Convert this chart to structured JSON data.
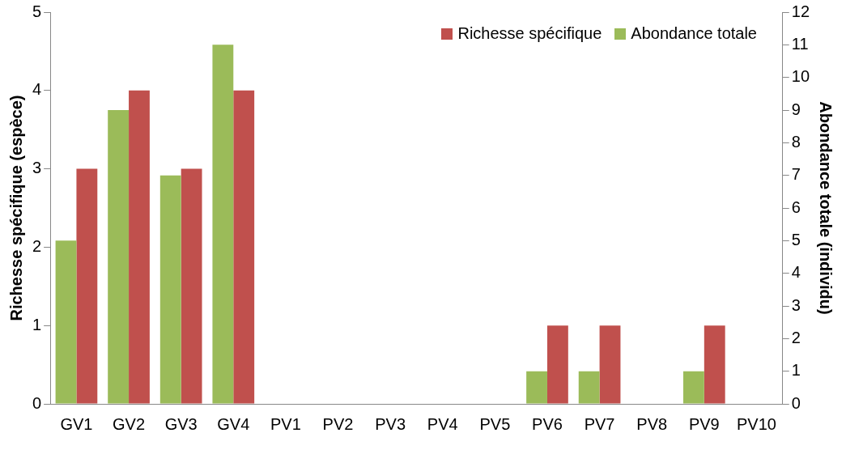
{
  "chart_data": {
    "type": "bar",
    "ylabel": "Richesse spécifique (espèce)",
    "y2label": "Abondance totale (individu)",
    "categories": [
      "GV1",
      "GV2",
      "GV3",
      "GV4",
      "PV1",
      "PV2",
      "PV3",
      "PV4",
      "PV5",
      "PV6",
      "PV7",
      "PV8",
      "PV9",
      "PV10"
    ],
    "series": [
      {
        "name": "Abondance totale",
        "color": "#9bbb59",
        "axis": "y2",
        "values": [
          5,
          9,
          7,
          11,
          0,
          0,
          0,
          0,
          0,
          1,
          1,
          0,
          1,
          0
        ]
      },
      {
        "name": "Richesse spécifique",
        "color": "#c0504d",
        "axis": "y",
        "values": [
          3,
          4,
          3,
          4,
          0,
          0,
          0,
          0,
          0,
          1,
          1,
          0,
          1,
          0
        ]
      }
    ],
    "ylim": [
      0,
      5
    ],
    "yticks": [
      0,
      1,
      2,
      3,
      4,
      5
    ],
    "y2lim": [
      0,
      12
    ],
    "y2ticks": [
      0,
      1,
      2,
      3,
      4,
      5,
      6,
      7,
      8,
      9,
      10,
      11,
      12
    ],
    "grid": false,
    "legend": "top right"
  }
}
